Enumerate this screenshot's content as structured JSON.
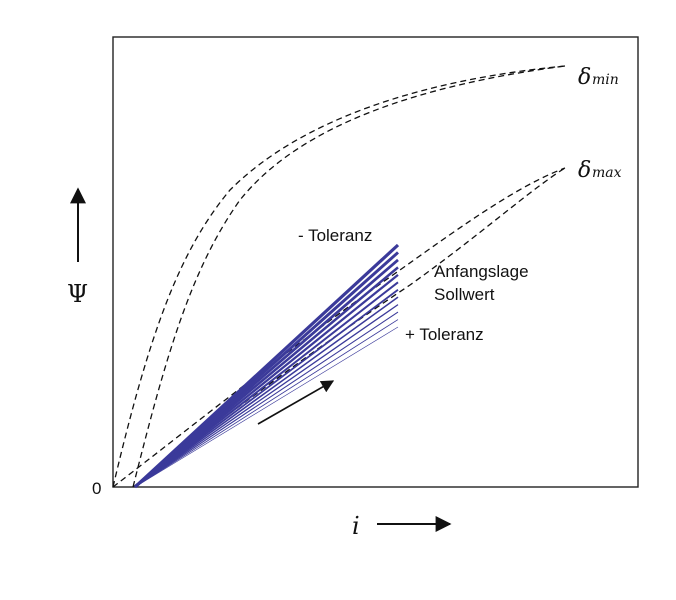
{
  "diagram": {
    "y_axis_symbol": "Ψ",
    "x_axis_symbol": "i",
    "origin_label": "0",
    "curves": [
      {
        "symbol": "δ",
        "subscript": "min"
      },
      {
        "symbol": "δ",
        "subscript": "max"
      }
    ],
    "labels": {
      "minus_tolerance": "- Toleranz",
      "plus_tolerance": "+ Toleranz",
      "start_position_line1": "Anfangslage",
      "start_position_line2": "Sollwert"
    },
    "colors": {
      "tolerance_lines": "#3b3a9a",
      "curves": "#111111"
    }
  }
}
